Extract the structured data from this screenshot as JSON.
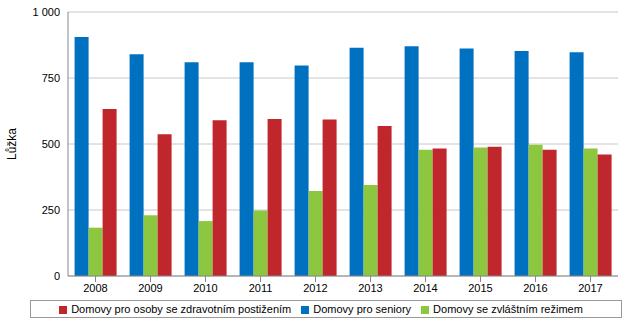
{
  "chart_data": {
    "type": "bar",
    "y_label": "Lůžka",
    "categories": [
      "2008",
      "2009",
      "2010",
      "2011",
      "2012",
      "2013",
      "2014",
      "2015",
      "2016",
      "2017"
    ],
    "series": [
      {
        "name": "Domovy pro seniory",
        "color": "#0070C0",
        "values": [
          905,
          840,
          810,
          810,
          797,
          865,
          870,
          862,
          852,
          848
        ]
      },
      {
        "name": "Domovy se zvláštním režimem",
        "color": "#8DC63F",
        "values": [
          183,
          230,
          208,
          248,
          322,
          345,
          478,
          487,
          497,
          483
        ]
      },
      {
        "name": "Domovy pro osoby se zdravotním postižením",
        "color": "#C0272D",
        "values": [
          633,
          537,
          590,
          595,
          593,
          568,
          483,
          490,
          478,
          460
        ]
      }
    ],
    "ylim": [
      0,
      1000
    ],
    "yticks": [
      0,
      250,
      500,
      750,
      {
        "value": 1000,
        "label": "1 000"
      }
    ],
    "grid": true,
    "legend": "bottom"
  }
}
